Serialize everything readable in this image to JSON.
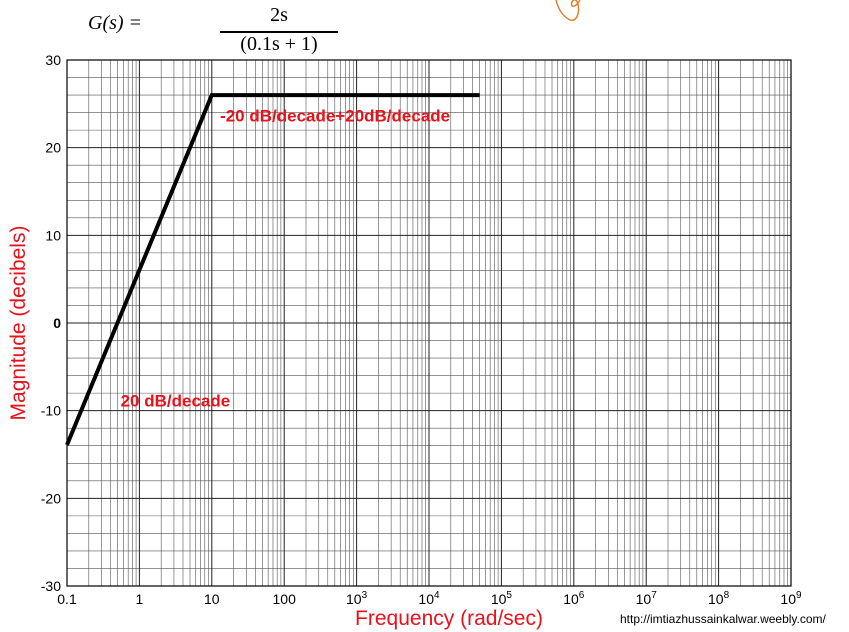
{
  "formula": {
    "lhs": "G(s) =",
    "numerator": "2s",
    "denominator": "(0.1s + 1)"
  },
  "source_url": "http://imtiazhussainkalwar.weebly.com/",
  "colors": {
    "line": "#000000",
    "annotation": "#e8121b",
    "grid": "#555555",
    "scribble": "#e07a2a"
  },
  "chart_data": {
    "type": "line",
    "title": "",
    "xlabel": "Frequency (rad/sec)",
    "ylabel": "Magnitude (decibels)",
    "xscale": "log",
    "xlim": [
      0.1,
      1000000000
    ],
    "ylim": [
      -30,
      30
    ],
    "grid": true,
    "x_tick_labels": [
      "0.1",
      "1",
      "10",
      "100",
      "10^3",
      "10^4",
      "10^5",
      "10^6",
      "10^7",
      "10^8",
      "10^9"
    ],
    "y_tick_labels": [
      "30",
      "20",
      "10",
      "0",
      "-10",
      "-20",
      "-30"
    ],
    "series": [
      {
        "x": [
          0.1,
          10,
          50000
        ],
        "y": [
          -13.9,
          26,
          26
        ]
      }
    ],
    "annotations": [
      {
        "text": "-20 dB/decade+20dB/decade",
        "x": 13,
        "y": 23
      },
      {
        "text": "20 dB/decade",
        "x": 0.55,
        "y": -9.5
      }
    ]
  }
}
